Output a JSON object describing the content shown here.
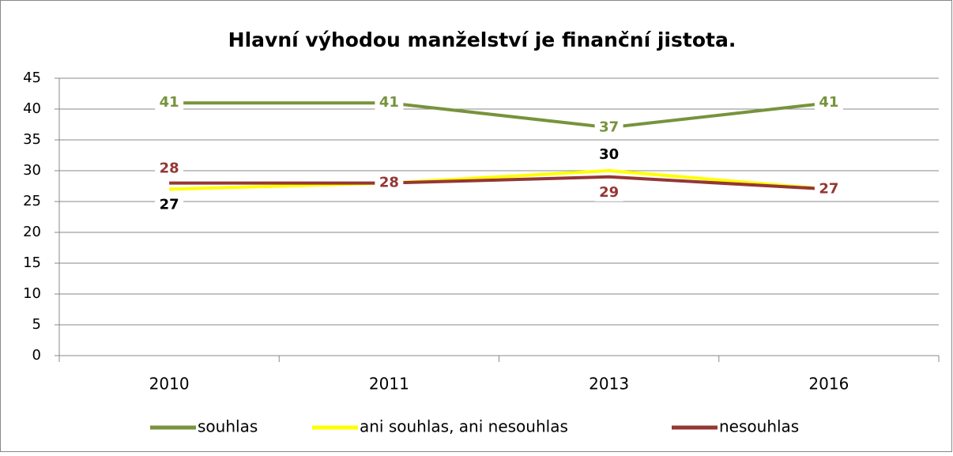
{
  "chart_data": {
    "type": "line",
    "title": "Hlavní výhodou manželství je finanční jistota.",
    "categories": [
      "2010",
      "2011",
      "2013",
      "2016"
    ],
    "series": [
      {
        "name": "souhlas",
        "color": "#77933c",
        "values": [
          41,
          41,
          37,
          41
        ],
        "label_color": "#77933c"
      },
      {
        "name": "ani souhlas, ani nesouhlas",
        "color": "#ffff00",
        "values": [
          27,
          28,
          30,
          27
        ],
        "value_labels": [
          "27",
          null,
          "30",
          null
        ],
        "label_color": "#000000"
      },
      {
        "name": "nesouhlas",
        "color": "#953735",
        "values": [
          28,
          28,
          29,
          27
        ],
        "label_color": "#953735"
      }
    ],
    "ylim": [
      0,
      45
    ],
    "yticks": [
      0,
      5,
      10,
      15,
      20,
      25,
      30,
      35,
      40,
      45
    ],
    "grid": true,
    "legend": "bottom"
  }
}
